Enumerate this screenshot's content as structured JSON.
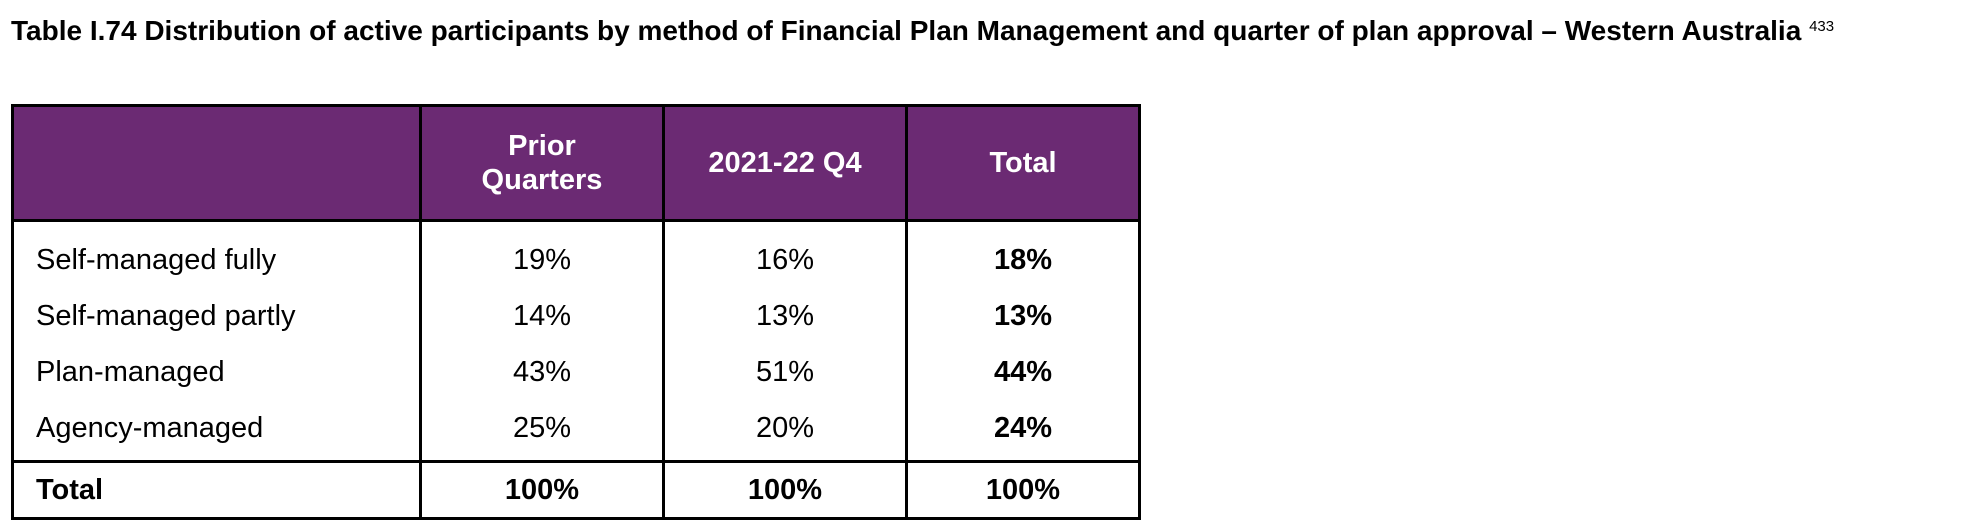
{
  "caption": {
    "title": "Table I.74 Distribution of active participants by method of Financial Plan Management and quarter of plan approval – Western Australia",
    "footnote_ref": "433"
  },
  "table": {
    "header_color": "#6b2a73",
    "columns": [
      "",
      "Prior Quarters",
      "2021-22 Q4",
      "Total"
    ],
    "rows": [
      {
        "label": "Self-managed fully",
        "prior": "19%",
        "q4": "16%",
        "total": "18%"
      },
      {
        "label": "Self-managed partly",
        "prior": "14%",
        "q4": "13%",
        "total": "13%"
      },
      {
        "label": "Plan-managed",
        "prior": "43%",
        "q4": "51%",
        "total": "44%"
      },
      {
        "label": "Agency-managed",
        "prior": "25%",
        "q4": "20%",
        "total": "24%"
      }
    ],
    "total_row": {
      "label": "Total",
      "prior": "100%",
      "q4": "100%",
      "total": "100%"
    }
  }
}
